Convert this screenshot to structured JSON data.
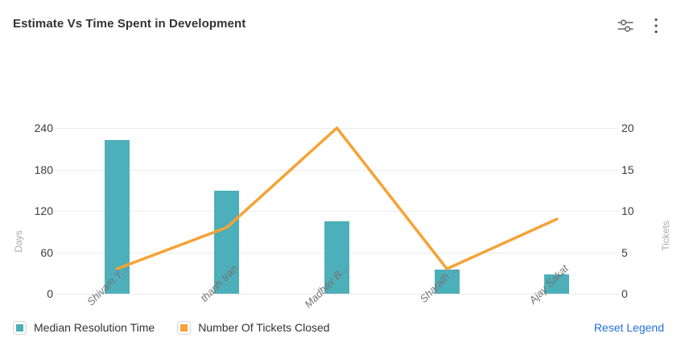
{
  "header": {
    "title": "Estimate Vs Time Spent in Development",
    "icons": [
      {
        "name": "filter-sliders-icon"
      },
      {
        "name": "kebab-menu-icon"
      }
    ]
  },
  "chart_data": {
    "type": "combo",
    "categories": [
      "Shivam Y...",
      "thanh.tran",
      "Madhav B...",
      "Sharath ...",
      "Ajay Sakat"
    ],
    "series": [
      {
        "name": "Median Resolution Time",
        "type": "bar",
        "axis": "left",
        "color": "#4DAFBA",
        "values": [
          222,
          149,
          105,
          35,
          28
        ]
      },
      {
        "name": "Number Of Tickets Closed",
        "type": "line",
        "axis": "right",
        "color": "#F6A235",
        "values": [
          3,
          8,
          20,
          3,
          9
        ]
      }
    ],
    "left_axis": {
      "label": "Days",
      "ticks": [
        0,
        60,
        120,
        180,
        240
      ],
      "min": 0,
      "max": 240
    },
    "right_axis": {
      "label": "Tickets",
      "ticks": [
        0,
        5,
        10,
        15,
        20
      ],
      "min": 0,
      "max": 20
    },
    "grid": true,
    "legend_position": "bottom"
  },
  "legend": {
    "reset_label": "Reset Legend"
  },
  "colors": {
    "bar_teal": "#4DAFBA",
    "line_orange": "#F6A235",
    "gridline": "#EBEBEB",
    "tick_label": "#3C3C3C",
    "axis_name": "#AAAAAA",
    "category_label": "#747474",
    "title": "#333333",
    "icon_gray": "#666666",
    "link_blue": "#2270DB"
  }
}
